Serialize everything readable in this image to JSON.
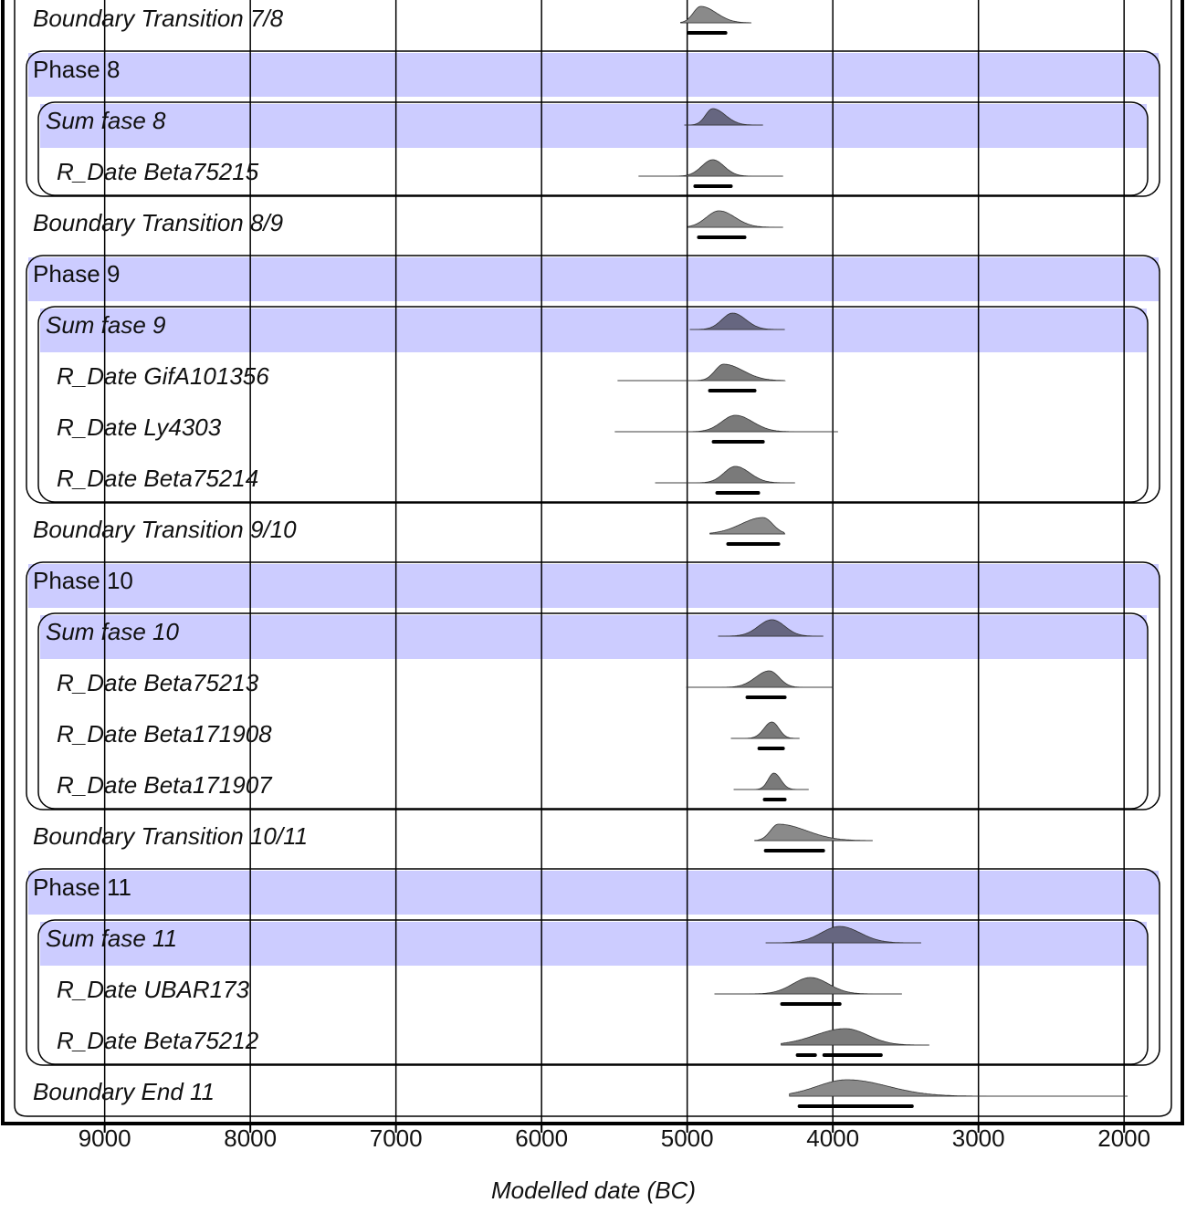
{
  "chart_data": {
    "type": "oxcal",
    "x_label": "Modelled date (BC)",
    "xlim": [
      9700,
      1600
    ],
    "xticks": [
      9000,
      8000,
      7000,
      6000,
      5000,
      4000,
      3000,
      2000
    ],
    "grid": true,
    "items": [
      {
        "kind": "boundary",
        "label": "Boundary Transition 7/8",
        "range": [
          5045,
          4562
        ],
        "peak": 4907,
        "hpd": [
          [
            4989,
            4737
          ]
        ]
      },
      {
        "kind": "phase",
        "label": "Phase 8",
        "sum": {
          "label": "Sum fase 8",
          "range": [
            5020,
            4480
          ],
          "peak": 4825,
          "dates": [
            {
              "label": "R_Date Beta75215",
              "range": [
                5334,
                4342
              ],
              "peak": 4825,
              "hpd": [
                [
                  4945,
                  4700
                ]
              ]
            }
          ]
        }
      },
      {
        "kind": "boundary",
        "label": "Boundary Transition 8/9",
        "range": [
          4995,
          4342
        ],
        "peak": 4782,
        "hpd": [
          [
            4920,
            4606
          ]
        ]
      },
      {
        "kind": "phase",
        "label": "Phase 9",
        "sum": {
          "label": "Sum fase 9",
          "range": [
            4982,
            4330
          ],
          "peak": 4688,
          "dates": [
            {
              "label": "R_Date GifA101356",
              "range": [
                5478,
                4330
              ],
              "peak": 4750,
              "hpd": [
                [
                  4844,
                  4537
                ]
              ]
            },
            {
              "label": "R_Date Ly4303",
              "range": [
                5497,
                3965
              ],
              "peak": 4669,
              "hpd": [
                [
                  4819,
                  4480
                ]
              ]
            },
            {
              "label": "R_Date Beta75214",
              "range": [
                5220,
                4260
              ],
              "peak": 4669,
              "hpd": [
                [
                  4794,
                  4512
                ]
              ]
            }
          ]
        }
      },
      {
        "kind": "boundary",
        "label": "Boundary Transition 9/10",
        "range": [
          4844,
          4330
        ],
        "peak": 4480,
        "hpd": [
          [
            4719,
            4374
          ]
        ]
      },
      {
        "kind": "phase",
        "label": "Phase 10",
        "sum": {
          "label": "Sum fase 10",
          "range": [
            4788,
            4066
          ],
          "peak": 4418,
          "dates": [
            {
              "label": "R_Date Beta75213",
              "range": [
                5007,
                3997
              ],
              "peak": 4436,
              "hpd": [
                [
                  4587,
                  4330
                ]
              ]
            },
            {
              "label": "R_Date Beta171908",
              "range": [
                4700,
                4229
              ],
              "peak": 4418,
              "hpd": [
                [
                  4505,
                  4342
                ]
              ]
            },
            {
              "label": "R_Date Beta171907",
              "range": [
                4681,
                4166
              ],
              "peak": 4405,
              "hpd": [
                [
                  4468,
                  4330
                ]
              ]
            }
          ]
        }
      },
      {
        "kind": "boundary",
        "label": "Boundary Transition 10/11",
        "range": [
          4537,
          3727
        ],
        "peak": 4374,
        "hpd": [
          [
            4461,
            4066
          ]
        ]
      },
      {
        "kind": "phase",
        "label": "Phase 11",
        "sum": {
          "label": "Sum fase 11",
          "range": [
            4461,
            3394
          ],
          "peak": 3953,
          "dates": [
            {
              "label": "R_Date UBAR173",
              "range": [
                4813,
                3526
              ],
              "peak": 4154,
              "hpd": [
                [
                  4349,
                  3953
                ]
              ]
            },
            {
              "label": "R_Date Beta75212",
              "range": [
                4355,
                3338
              ],
              "peak": 3915,
              "hpd": [
                [
                  4242,
                  4122
                ],
                [
                  4059,
                  3670
                ]
              ]
            }
          ]
        }
      },
      {
        "kind": "boundary",
        "label": "Boundary End 11",
        "range": [
          4298,
          1976
        ],
        "peak": 3903,
        "hpd": [
          [
            4229,
            3457
          ]
        ]
      }
    ]
  }
}
